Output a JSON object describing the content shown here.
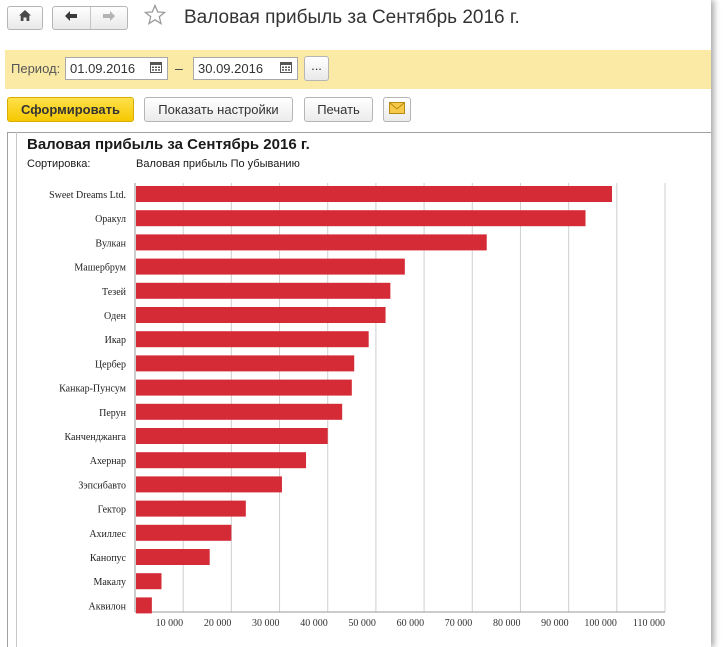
{
  "window": {
    "title": "Валовая прибыль за Сентябрь 2016 г."
  },
  "period": {
    "label": "Период:",
    "from": "01.09.2016",
    "to": "30.09.2016",
    "separator": "–",
    "more_label": "..."
  },
  "toolbar": {
    "generate_label": "Сформировать",
    "settings_label": "Показать настройки",
    "print_label": "Печать"
  },
  "report": {
    "title": "Валовая прибыль за Сентябрь 2016 г.",
    "sort_label": "Сортировка:",
    "sort_value": "Валовая прибыль По убыванию"
  },
  "icons": {
    "home": "home-icon",
    "back": "arrow-left-icon",
    "forward": "arrow-right-icon",
    "favorite": "star-icon",
    "calendar": "calendar-icon",
    "mail": "envelope-icon"
  },
  "colors": {
    "bar": "#d52b36",
    "accent": "#f5c800",
    "panel": "#fbeaa6"
  },
  "chart_data": {
    "type": "bar",
    "orientation": "horizontal",
    "categories": [
      "Sweet Dreams Ltd.",
      "Оракул",
      "Вулкан",
      "Машербрум",
      "Тезей",
      "Оден",
      "Икар",
      "Цербер",
      "Канкар-Пунсум",
      "Перун",
      "Канченджанга",
      "Ахернар",
      "Зэпсибавто",
      "Гектор",
      "Ахиллес",
      "Канопус",
      "Макалу",
      "Аквилон"
    ],
    "values": [
      99000,
      93500,
      73000,
      56000,
      53000,
      52000,
      48500,
      45500,
      45000,
      43000,
      40000,
      35500,
      30500,
      23000,
      20000,
      15500,
      5500,
      3500
    ],
    "xticks": [
      "10 000",
      "20 000",
      "30 000",
      "40 000",
      "50 000",
      "60 000",
      "70 000",
      "80 000",
      "90 000",
      "100 000",
      "110 000"
    ],
    "xlim": [
      0,
      110000
    ],
    "grid": true,
    "legend": "none"
  }
}
